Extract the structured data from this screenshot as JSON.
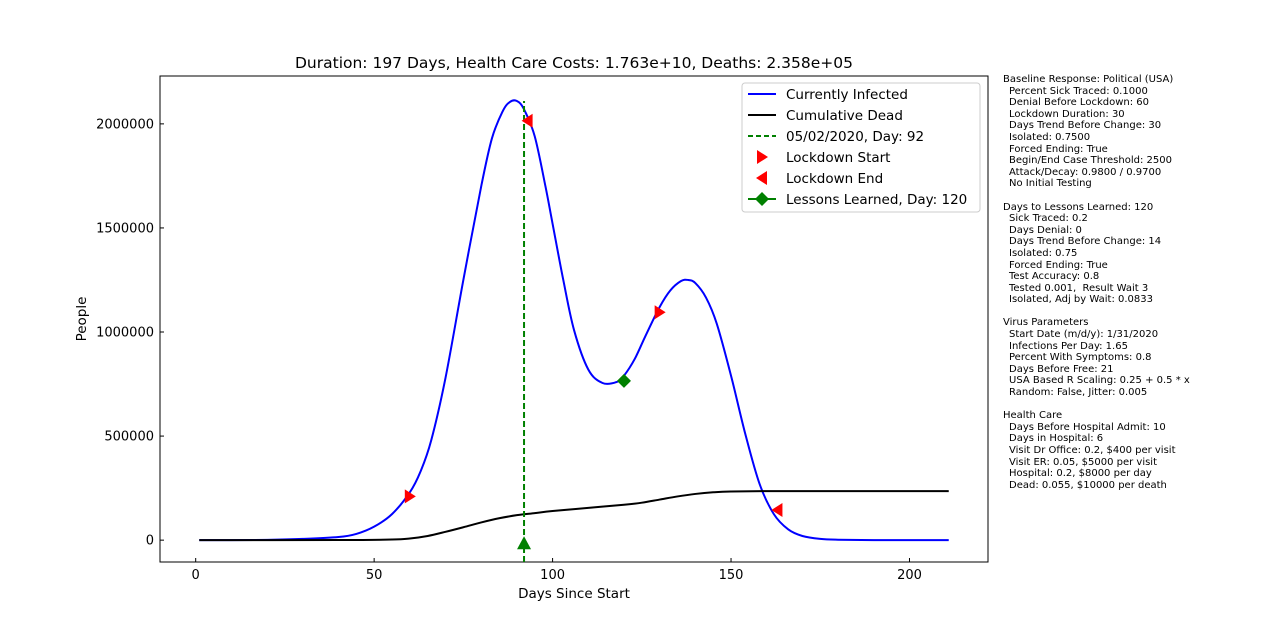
{
  "colors": {
    "infected": "#0000ff",
    "dead": "#000000",
    "marker_line": "#008000",
    "lockdown": "#ff0000",
    "lessons": "#008000"
  },
  "chart_data": {
    "type": "line",
    "title": "Duration: 197 Days,    Health Care Costs: 1.763e+10,    Deaths: 2.358e+05",
    "xlabel": "Days Since Start",
    "ylabel": "People",
    "xlim": [
      -10,
      222
    ],
    "ylim": [
      -105000,
      2230000
    ],
    "xticks": [
      0,
      50,
      100,
      150,
      200
    ],
    "yticks": [
      0,
      500000,
      1000000,
      1500000,
      2000000
    ],
    "legend_position": "top-right",
    "series": [
      {
        "name": "Currently Infected",
        "color": "#0000ff",
        "x": [
          1,
          10,
          20,
          30,
          40,
          45,
          50,
          55,
          60,
          63,
          66,
          70,
          75,
          80,
          83,
          86,
          88,
          90,
          92,
          95,
          98,
          100,
          103,
          106,
          110,
          114,
          118,
          120,
          123,
          126,
          130,
          133,
          136,
          138,
          140,
          143,
          146,
          150,
          154,
          158,
          162,
          166,
          170,
          175,
          180,
          190,
          200,
          211
        ],
        "y": [
          0,
          200,
          1500,
          6000,
          15000,
          30000,
          65000,
          125000,
          230000,
          330000,
          480000,
          780000,
          1250000,
          1700000,
          1930000,
          2060000,
          2105000,
          2110000,
          2070000,
          1940000,
          1700000,
          1520000,
          1250000,
          1010000,
          820000,
          755000,
          760000,
          790000,
          870000,
          980000,
          1120000,
          1200000,
          1245000,
          1250000,
          1235000,
          1165000,
          1040000,
          790000,
          510000,
          270000,
          125000,
          52000,
          20000,
          6000,
          2000,
          300,
          50,
          0
        ]
      },
      {
        "name": "Cumulative Dead",
        "color": "#000000",
        "x": [
          1,
          40,
          55,
          60,
          65,
          70,
          75,
          80,
          85,
          90,
          95,
          100,
          110,
          120,
          125,
          130,
          135,
          140,
          145,
          150,
          160,
          180,
          200,
          211
        ],
        "y": [
          0,
          500,
          3000,
          8000,
          20000,
          40000,
          62000,
          85000,
          105000,
          120000,
          130000,
          140000,
          155000,
          170000,
          180000,
          195000,
          210000,
          222000,
          230000,
          234000,
          235500,
          235800,
          235800,
          235800
        ]
      }
    ],
    "vline": {
      "name": "05/02/2020, Day: 92",
      "x": 92
    },
    "lockdown_start": {
      "name": "Lockdown Start",
      "points": [
        [
          60,
          210000
        ],
        [
          130,
          1095000
        ]
      ]
    },
    "lockdown_end": {
      "name": "Lockdown End",
      "points": [
        [
          93,
          2015000
        ],
        [
          163,
          145000
        ]
      ]
    },
    "lessons_learned": {
      "name": "Lessons Learned, Day: 120",
      "points": [
        [
          120,
          765000
        ],
        [
          92,
          -15000
        ]
      ]
    }
  },
  "side_panel": [
    {
      "text": "Baseline Response: Political (USA)",
      "indent": false
    },
    {
      "text": "Percent Sick Traced: 0.1000",
      "indent": true
    },
    {
      "text": "Denial Before Lockdown: 60",
      "indent": true
    },
    {
      "text": "Lockdown Duration: 30",
      "indent": true
    },
    {
      "text": "Days Trend Before Change: 30",
      "indent": true
    },
    {
      "text": "Isolated: 0.7500",
      "indent": true
    },
    {
      "text": "Forced Ending: True",
      "indent": true
    },
    {
      "text": "Begin/End Case Threshold: 2500",
      "indent": true
    },
    {
      "text": "Attack/Decay: 0.9800 / 0.9700",
      "indent": true
    },
    {
      "text": "No Initial Testing",
      "indent": true
    },
    {
      "text": "",
      "indent": false
    },
    {
      "text": "Days to Lessons Learned: 120",
      "indent": false
    },
    {
      "text": "Sick Traced: 0.2",
      "indent": true
    },
    {
      "text": "Days Denial: 0",
      "indent": true
    },
    {
      "text": "Days Trend Before Change: 14",
      "indent": true
    },
    {
      "text": "Isolated: 0.75",
      "indent": true
    },
    {
      "text": "Forced Ending: True",
      "indent": true
    },
    {
      "text": "Test Accuracy: 0.8",
      "indent": true
    },
    {
      "text": "Tested 0.001,  Result Wait 3",
      "indent": true
    },
    {
      "text": "Isolated, Adj by Wait: 0.0833",
      "indent": true
    },
    {
      "text": "",
      "indent": false
    },
    {
      "text": "Virus Parameters",
      "indent": false
    },
    {
      "text": "Start Date (m/d/y): 1/31/2020",
      "indent": true
    },
    {
      "text": "Infections Per Day: 1.65",
      "indent": true
    },
    {
      "text": "Percent With Symptoms: 0.8",
      "indent": true
    },
    {
      "text": "Days Before Free: 21",
      "indent": true
    },
    {
      "text": "USA Based R Scaling: 0.25 + 0.5 * x",
      "indent": true
    },
    {
      "text": "Random: False, Jitter: 0.005",
      "indent": true
    },
    {
      "text": "",
      "indent": false
    },
    {
      "text": "Health Care",
      "indent": false
    },
    {
      "text": "Days Before Hospital Admit: 10",
      "indent": true
    },
    {
      "text": "Days in Hospital: 6",
      "indent": true
    },
    {
      "text": "Visit Dr Office: 0.2, $400 per visit",
      "indent": true
    },
    {
      "text": "Visit ER: 0.05, $5000 per visit",
      "indent": true
    },
    {
      "text": "Hospital: 0.2, $8000 per day",
      "indent": true
    },
    {
      "text": "Dead: 0.055, $10000 per death",
      "indent": true
    }
  ]
}
